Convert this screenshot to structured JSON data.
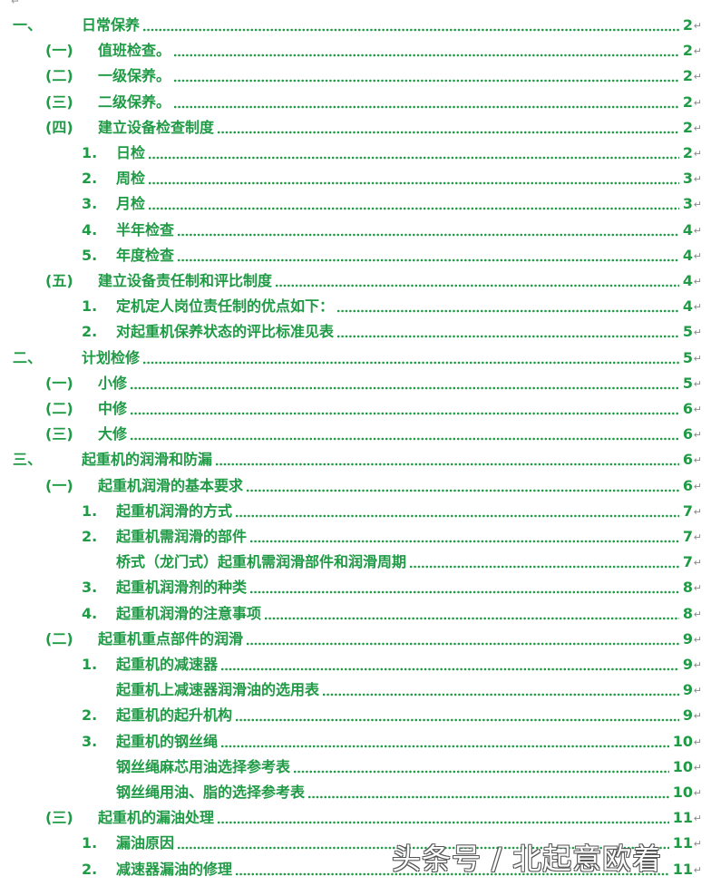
{
  "accent_color": "#1f9a45",
  "toc": [
    {
      "level": 0,
      "num": "一、",
      "title": "日常保养",
      "page": "2"
    },
    {
      "level": 1,
      "num": "(一)",
      "title": "值班检查。",
      "page": "2"
    },
    {
      "level": 1,
      "num": "(二)",
      "title": "一级保养。",
      "page": "2"
    },
    {
      "level": 1,
      "num": "(三)",
      "title": "二级保养。",
      "page": "2"
    },
    {
      "level": 1,
      "num": "(四)",
      "title": "建立设备检查制度",
      "page": "2"
    },
    {
      "level": 2,
      "num": "1.",
      "title": "日检",
      "page": "2"
    },
    {
      "level": 2,
      "num": "2.",
      "title": "周检",
      "page": "3"
    },
    {
      "level": 2,
      "num": "3.",
      "title": "月检",
      "page": "3"
    },
    {
      "level": 2,
      "num": "4.",
      "title": "半年检查",
      "page": "4"
    },
    {
      "level": 2,
      "num": "5.",
      "title": "年度检查",
      "page": "4"
    },
    {
      "level": 1,
      "num": "(五)",
      "title": "建立设备责任制和评比制度",
      "page": "4"
    },
    {
      "level": 2,
      "num": "1.",
      "title": "定机定人岗位责任制的优点如下：",
      "page": "4"
    },
    {
      "level": 2,
      "num": "2.",
      "title": "对起重机保养状态的评比标准见表",
      "page": "5"
    },
    {
      "level": 0,
      "num": "二、",
      "title": "计划检修",
      "page": "5"
    },
    {
      "level": 1,
      "num": "(一)",
      "title": "小修",
      "page": "5"
    },
    {
      "level": 1,
      "num": "(二)",
      "title": "中修",
      "page": "6"
    },
    {
      "level": 1,
      "num": "(三)",
      "title": "大修",
      "page": "6"
    },
    {
      "level": 0,
      "num": "三、",
      "title": "起重机的润滑和防漏",
      "page": "6"
    },
    {
      "level": 1,
      "num": "(一)",
      "title": "起重机润滑的基本要求",
      "page": "6"
    },
    {
      "level": 2,
      "num": "1.",
      "title": "起重机润滑的方式",
      "page": "7"
    },
    {
      "level": 2,
      "num": "2.",
      "title": "起重机需润滑的部件",
      "page": "7"
    },
    {
      "level": 3,
      "num": "",
      "title": "桥式（龙门式）起重机需润滑部件和润滑周期",
      "page": "7"
    },
    {
      "level": 2,
      "num": "3.",
      "title": "起重机润滑剂的种类",
      "page": "8"
    },
    {
      "level": 2,
      "num": "4.",
      "title": "起重机润滑的注意事项",
      "page": "8"
    },
    {
      "level": 1,
      "num": "(二)",
      "title": "起重机重点部件的润滑",
      "page": "9"
    },
    {
      "level": 2,
      "num": "1.",
      "title": "起重机的减速器",
      "page": "9"
    },
    {
      "level": 3,
      "num": "",
      "title": "起重机上减速器润滑油的选用表",
      "page": "9"
    },
    {
      "level": 2,
      "num": "2.",
      "title": "起重机的起升机构",
      "page": "9"
    },
    {
      "level": 2,
      "num": "3.",
      "title": "起重机的钢丝绳",
      "page": "10"
    },
    {
      "level": 3,
      "num": "",
      "title": "钢丝绳麻芯用油选择参考表",
      "page": "10"
    },
    {
      "level": 3,
      "num": "",
      "title": "钢丝绳用油、脂的选择参考表",
      "page": "10"
    },
    {
      "level": 1,
      "num": "(三)",
      "title": "起重机的漏油处理",
      "page": "11"
    },
    {
      "level": 2,
      "num": "1.",
      "title": "漏油原因",
      "page": "11"
    },
    {
      "level": 2,
      "num": "2.",
      "title": "减速器漏油的修理",
      "page": "11"
    }
  ],
  "watermark": "头条号 / 北起意欧着"
}
